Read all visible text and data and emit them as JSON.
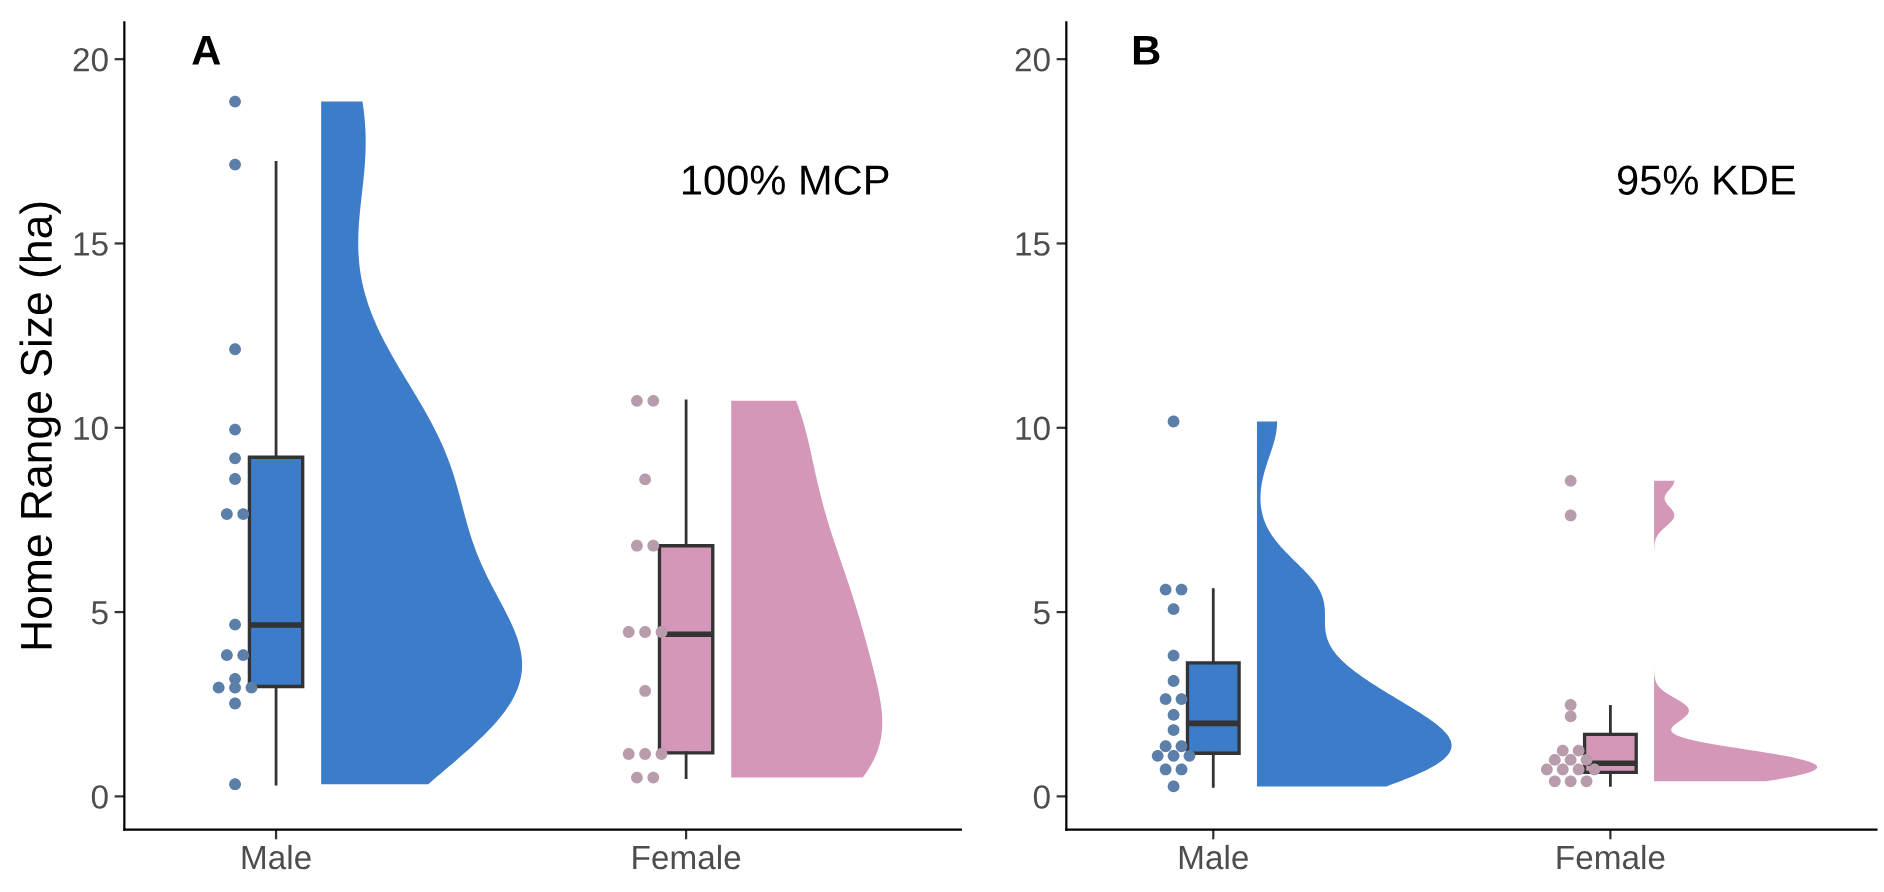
{
  "chart_data": [
    {
      "type": "box",
      "categories": [
        "Male",
        "Female"
      ],
      "ylabel": "Home Range Size (ha)",
      "ylim": [
        -0.9,
        21
      ],
      "yticks": [
        0,
        5,
        10,
        15,
        20
      ],
      "grid": false,
      "legend": false,
      "annotations": [
        "A",
        "100% MCP"
      ],
      "series": [
        {
          "type": "box",
          "colors": [
            "#3d7cc9",
            "#d597b8"
          ],
          "boxes": [
            {
              "low": 0.33,
              "q1": 2.98,
              "median": 4.65,
              "q3": 9.2,
              "high": 17.2
            },
            {
              "low": 0.51,
              "q1": 1.18,
              "median": 4.4,
              "q3": 6.8,
              "high": 10.73
            }
          ]
        },
        {
          "type": "scatter",
          "color": "#5b7fa8",
          "x": [
            "Male",
            "Male",
            "Male",
            "Male",
            "Male",
            "Male",
            "Male",
            "Male",
            "Male",
            "Male",
            "Male",
            "Male",
            "Male",
            "Male",
            "Male",
            "Male",
            "Male"
          ],
          "values": [
            18.85,
            17.14,
            12.13,
            9.95,
            9.17,
            8.61,
            7.66,
            7.66,
            4.66,
            3.83,
            3.83,
            3.19,
            2.95,
            2.95,
            2.95,
            2.52,
            0.33
          ]
        },
        {
          "type": "scatter",
          "color": "#b89cab",
          "x": [
            "Female",
            "Female",
            "Female",
            "Female",
            "Female",
            "Female",
            "Female",
            "Female",
            "Female",
            "Female",
            "Female",
            "Female",
            "Female",
            "Female"
          ],
          "values": [
            10.73,
            10.73,
            8.6,
            6.8,
            6.8,
            4.46,
            4.46,
            4.46,
            2.86,
            1.15,
            1.15,
            1.15,
            0.51,
            0.51
          ]
        }
      ]
    },
    {
      "type": "box",
      "categories": [
        "Male",
        "Female"
      ],
      "ylim": [
        -0.9,
        21
      ],
      "yticks": [
        0,
        5,
        10,
        15,
        20
      ],
      "grid": false,
      "legend": false,
      "annotations": [
        "B",
        "95% KDE"
      ],
      "series": [
        {
          "type": "box",
          "colors": [
            "#3d7cc9",
            "#d597b8"
          ],
          "boxes": [
            {
              "low": 0.27,
              "q1": 1.17,
              "median": 1.98,
              "q3": 3.62,
              "high": 5.61
            },
            {
              "low": 0.3,
              "q1": 0.65,
              "median": 0.9,
              "q3": 1.68,
              "high": 2.44
            }
          ]
        },
        {
          "type": "scatter",
          "color": "#5b7fa8",
          "x": [
            "Male",
            "Male",
            "Male",
            "Male",
            "Male",
            "Male",
            "Male",
            "Male",
            "Male",
            "Male",
            "Male",
            "Male",
            "Male",
            "Male",
            "Male",
            "Male",
            "Male",
            "Male"
          ],
          "values": [
            10.17,
            5.61,
            5.61,
            5.08,
            3.82,
            3.13,
            2.64,
            2.64,
            2.21,
            1.8,
            1.36,
            1.36,
            1.1,
            1.1,
            1.1,
            0.73,
            0.73,
            0.27
          ]
        },
        {
          "type": "scatter",
          "color": "#b89cab",
          "x": [
            "Female",
            "Female",
            "Female",
            "Female",
            "Female",
            "Female",
            "Female",
            "Female",
            "Female",
            "Female",
            "Female",
            "Female",
            "Female",
            "Female",
            "Female",
            "Female"
          ],
          "values": [
            8.56,
            7.62,
            2.48,
            2.17,
            1.24,
            1.24,
            0.99,
            0.99,
            0.99,
            0.73,
            0.73,
            0.73,
            0.73,
            0.41,
            0.41,
            0.41
          ]
        }
      ]
    }
  ]
}
